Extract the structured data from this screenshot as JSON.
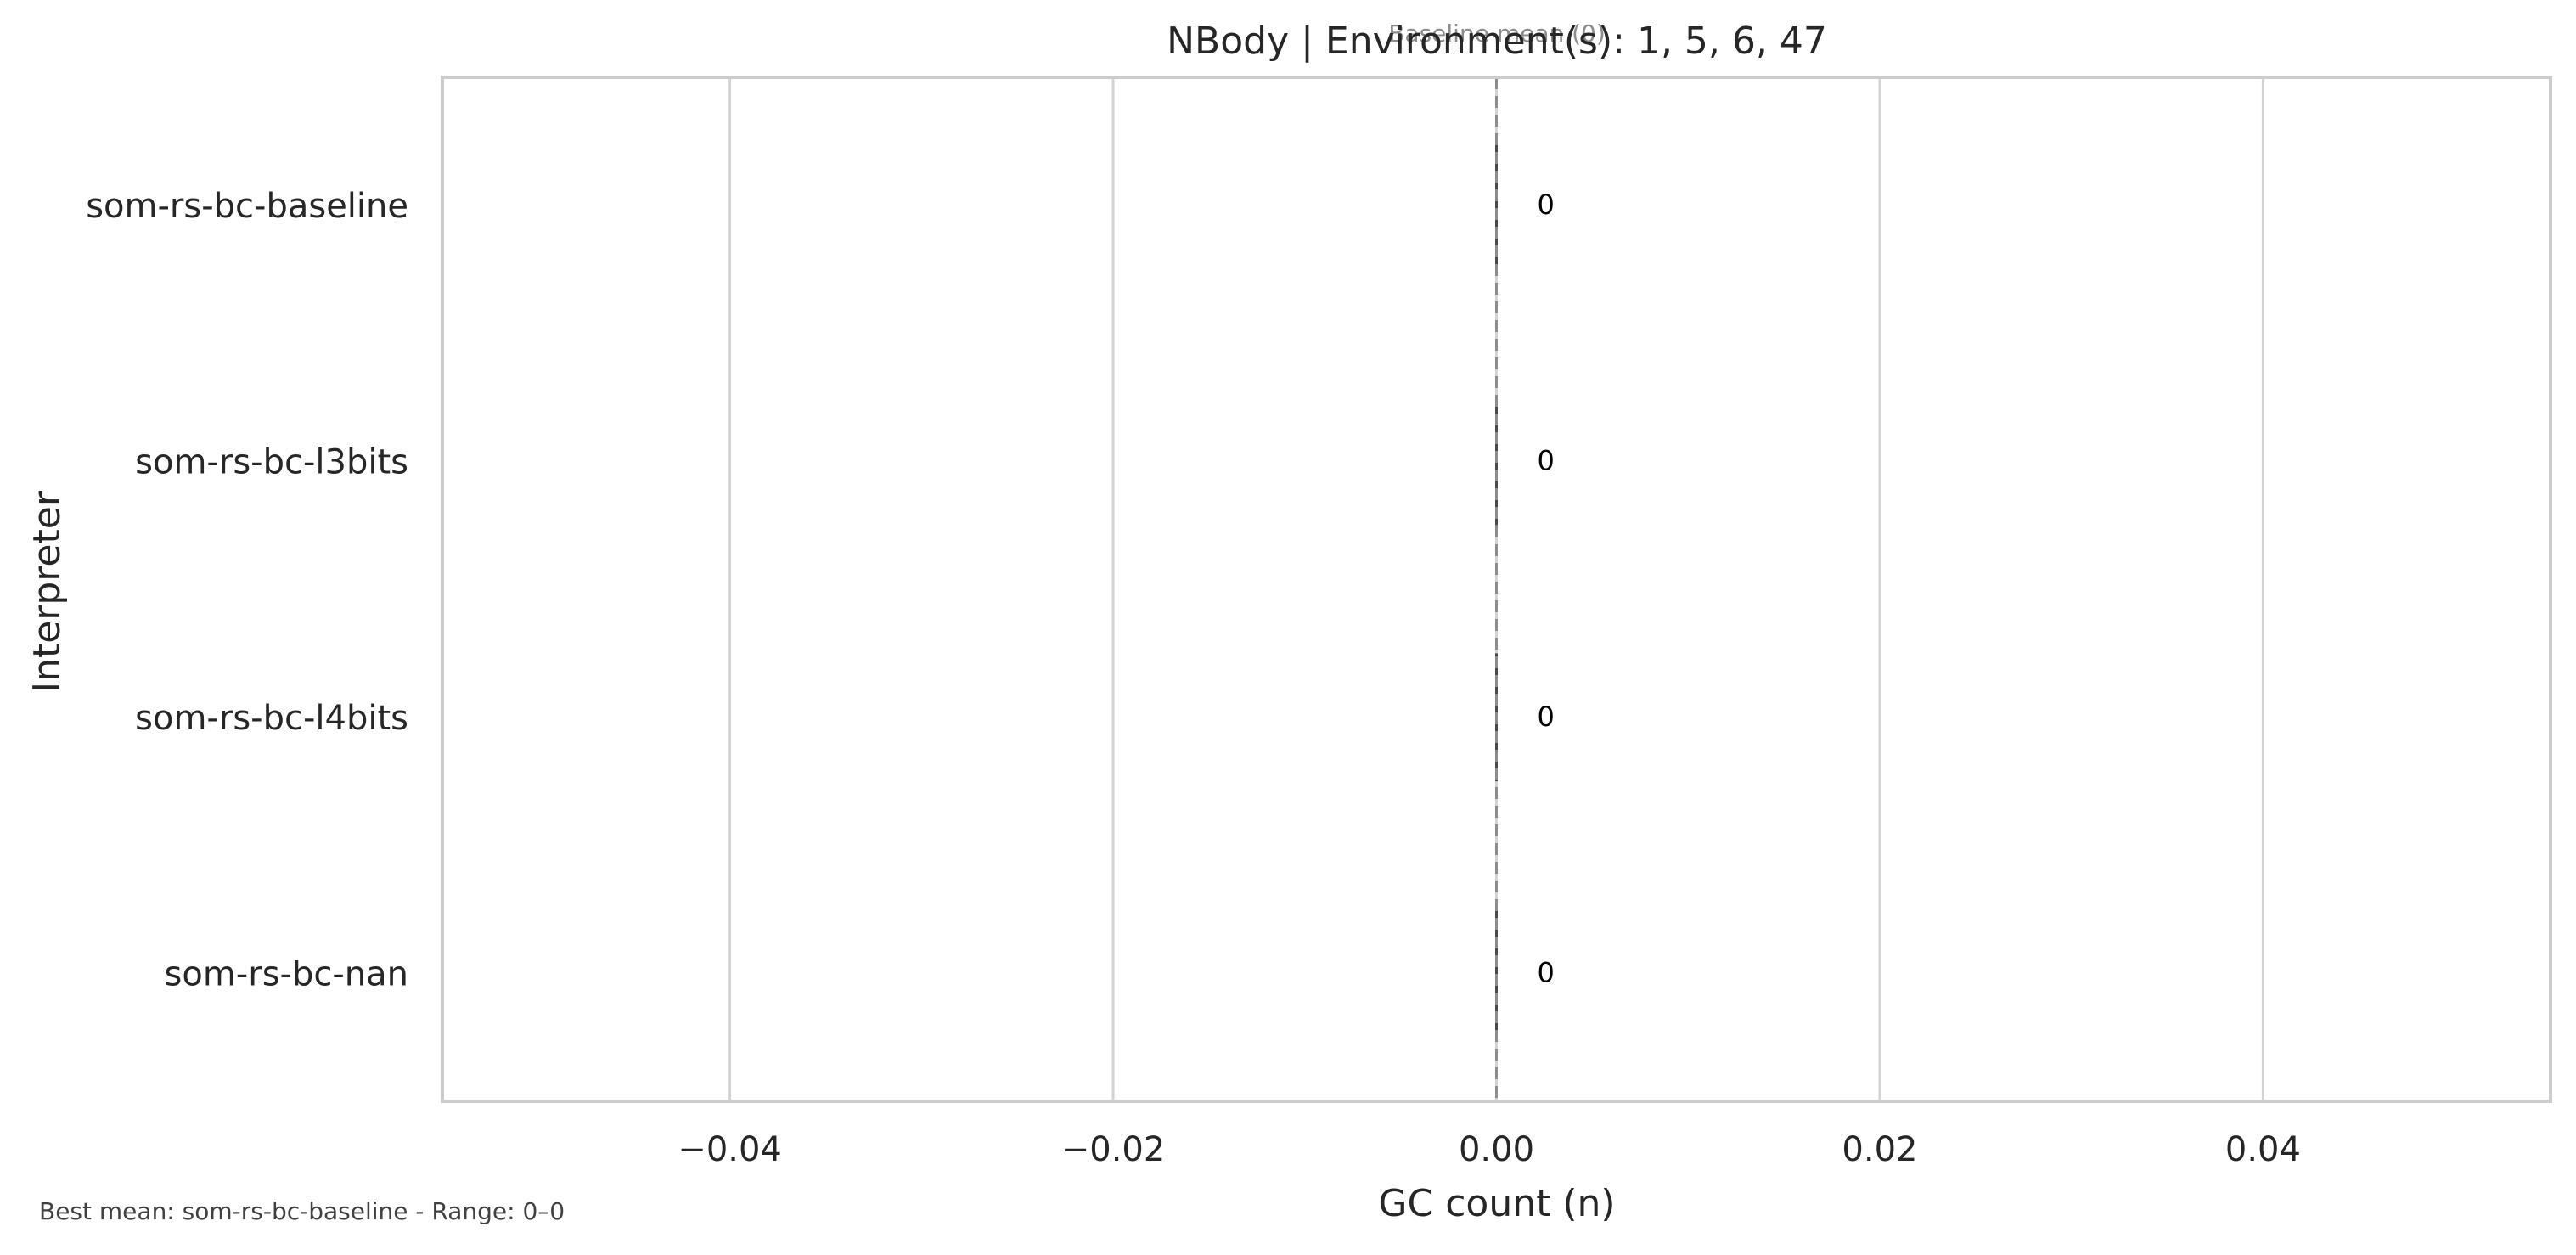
{
  "chart_data": {
    "type": "bar",
    "orientation": "horizontal",
    "title": "NBody | Environment(s): 1, 5, 6, 47",
    "xlabel": "GC count (n)",
    "ylabel": "Interpreter",
    "categories": [
      "som-rs-bc-baseline",
      "som-rs-bc-l3bits",
      "som-rs-bc-l4bits",
      "som-rs-bc-nan"
    ],
    "values": [
      0,
      0,
      0,
      0
    ],
    "data_labels": [
      "0",
      "0",
      "0",
      "0"
    ],
    "xlim": [
      -0.055,
      0.055
    ],
    "xticks": [
      -0.04,
      -0.02,
      0.0,
      0.02,
      0.04
    ],
    "xtick_labels": [
      "−0.04",
      "−0.02",
      "0.00",
      "0.02",
      "0.04"
    ],
    "grid": "vertical",
    "baseline": {
      "value": 0,
      "label": "Baseline mean (0)"
    },
    "footnote": "Best mean: som-rs-bc-baseline - Range: 0–0",
    "colors": {
      "axes_frame": "#cccccc",
      "grid": "#d3d3d3",
      "bar": "#4a4a4a",
      "baseline": "#8c8c8c",
      "text": "#262626"
    }
  }
}
